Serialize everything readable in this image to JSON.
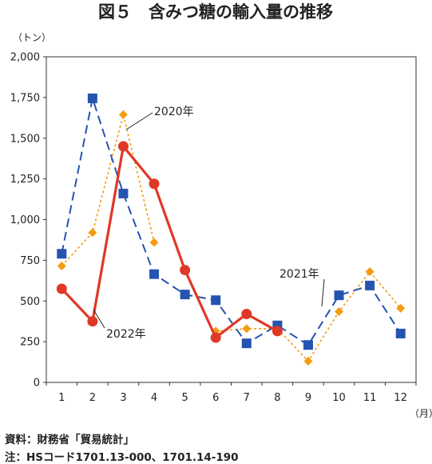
{
  "chart_data": {
    "type": "line",
    "title": "図５　含みつ糖の輸入量の推移",
    "ylabel": "（トン）",
    "xlabel": "（月）",
    "ylim": [
      0,
      2000
    ],
    "yticks": [
      0,
      250,
      500,
      750,
      1000,
      1250,
      1500,
      1750,
      2000
    ],
    "ytick_labels": [
      "0",
      "250",
      "500",
      "750",
      "1,000",
      "1,250",
      "1,500",
      "1,750",
      "2,000"
    ],
    "categories": [
      "1",
      "2",
      "3",
      "4",
      "5",
      "6",
      "7",
      "8",
      "9",
      "10",
      "11",
      "12"
    ],
    "grid": false,
    "series": [
      {
        "name": "2020年",
        "color": "#f39c12",
        "marker": "diamond",
        "line": "dotted",
        "values": [
          715,
          920,
          1645,
          860,
          null,
          315,
          330,
          330,
          130,
          435,
          680,
          455
        ]
      },
      {
        "name": "2021年",
        "color": "#2554b0",
        "marker": "square",
        "line": "dashed",
        "values": [
          790,
          1745,
          1160,
          665,
          540,
          505,
          240,
          350,
          230,
          535,
          595,
          300
        ]
      },
      {
        "name": "2022年",
        "color": "#e03826",
        "marker": "circle",
        "line": "solid",
        "values": [
          575,
          375,
          1450,
          1220,
          690,
          275,
          420,
          315,
          null,
          null,
          null,
          null
        ]
      }
    ]
  },
  "notes": {
    "source": "資料：財務省「貿易統計」",
    "remark": "注：HSコード1701.13-000、1701.14-190"
  }
}
